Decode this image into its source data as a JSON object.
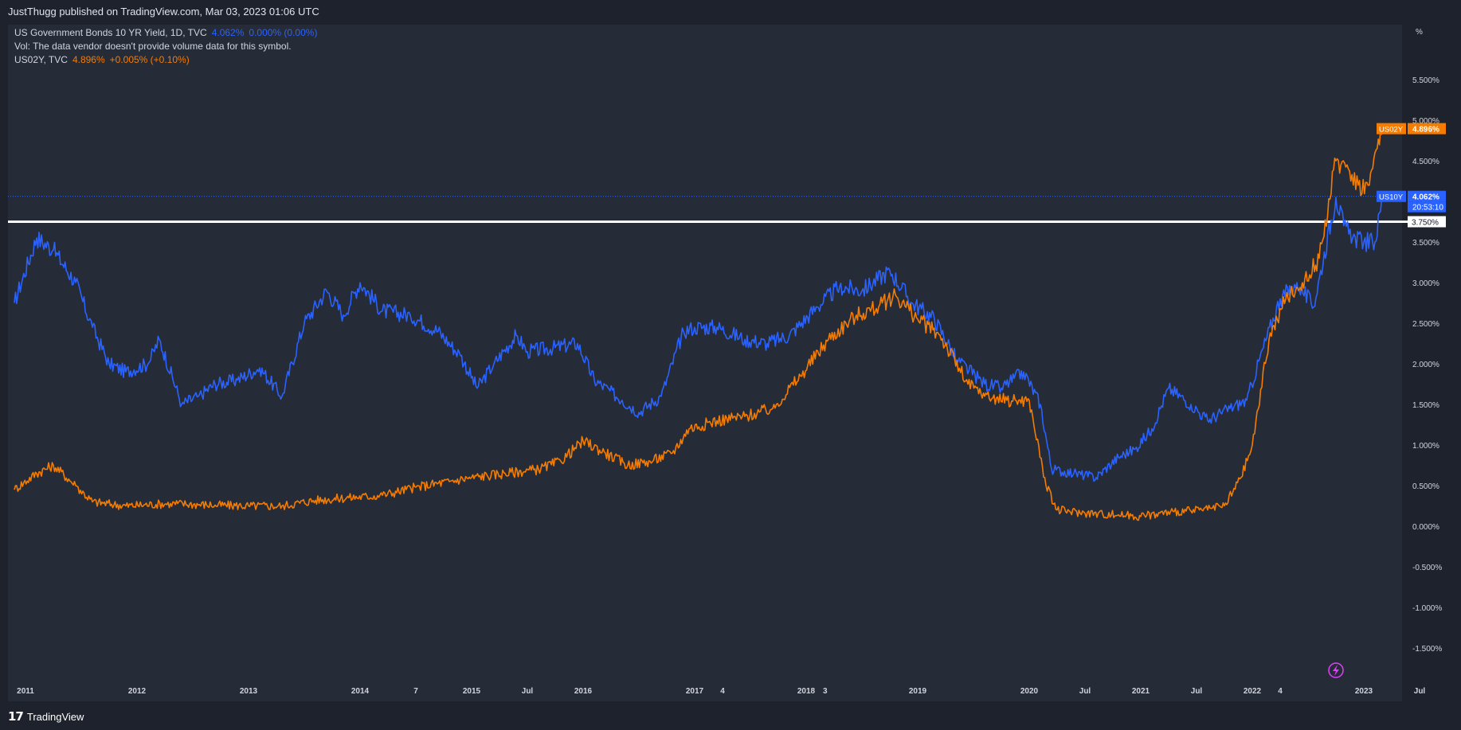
{
  "header": {
    "published_line": "JustThugg published on TradingView.com, Mar 03, 2023 01:06 UTC"
  },
  "legend": {
    "us10y": {
      "name": "US Government Bonds 10 YR Yield, 1D, TVC",
      "value": "4.062%",
      "change": "0.000% (0.00%)"
    },
    "vol": "Vol: The data vendor doesn't provide volume data for this symbol.",
    "us02y": {
      "name": "US02Y, TVC",
      "value": "4.896%",
      "change": "+0.005% (+0.10%)"
    }
  },
  "price_labels": {
    "us02y": {
      "tag": "US02Y",
      "value": "4.896%"
    },
    "us10y": {
      "tag": "US10Y",
      "value": "4.062%",
      "countdown": "20:53:10"
    },
    "hline": "3.750%"
  },
  "footer": {
    "logo_text": "TradingView"
  },
  "colors": {
    "background": "#1e222d",
    "pane": "#262b38",
    "us10y": "#2962ff",
    "us02y": "#f57c00",
    "hline": "#ffffff",
    "axis_text": "#d1d4dc"
  },
  "icons": {
    "replay": "lightning-icon"
  },
  "chart_data": {
    "type": "line",
    "y_unit": "%",
    "ylim": [
      -1.85,
      5.9
    ],
    "grid": false,
    "y_ticks": [
      "5.500%",
      "5.000%",
      "4.500%",
      "4.000%",
      "3.500%",
      "3.000%",
      "2.500%",
      "2.000%",
      "1.500%",
      "1.000%",
      "0.500%",
      "0.000%",
      "-0.500%",
      "-1.000%",
      "-1.500%"
    ],
    "x_ticks": [
      {
        "label": "2011",
        "t": 2011.0
      },
      {
        "label": "2012",
        "t": 2012.0
      },
      {
        "label": "2013",
        "t": 2013.0
      },
      {
        "label": "2014",
        "t": 2014.0
      },
      {
        "label": "7",
        "t": 2014.5
      },
      {
        "label": "2015",
        "t": 2015.0
      },
      {
        "label": "Jul",
        "t": 2015.5
      },
      {
        "label": "2016",
        "t": 2016.0
      },
      {
        "label": "2017",
        "t": 2017.0
      },
      {
        "label": "4",
        "t": 2017.25
      },
      {
        "label": "2018",
        "t": 2018.0
      },
      {
        "label": "3",
        "t": 2018.17
      },
      {
        "label": "2019",
        "t": 2019.0
      },
      {
        "label": "2020",
        "t": 2020.0
      },
      {
        "label": "Jul",
        "t": 2020.5
      },
      {
        "label": "2021",
        "t": 2021.0
      },
      {
        "label": "Jul",
        "t": 2021.5
      },
      {
        "label": "2022",
        "t": 2022.0
      },
      {
        "label": "4",
        "t": 2022.25
      },
      {
        "label": "2023",
        "t": 2023.0
      },
      {
        "label": "Jul",
        "t": 2023.5
      }
    ],
    "horizontal_line": 3.75,
    "series": [
      {
        "name": "US10Y",
        "color": "#2962ff",
        "x": [
          2010.9,
          2011.1,
          2011.25,
          2011.45,
          2011.6,
          2011.75,
          2011.9,
          2012.1,
          2012.2,
          2012.4,
          2012.55,
          2012.7,
          2012.9,
          2013.1,
          2013.3,
          2013.5,
          2013.7,
          2013.85,
          2014.0,
          2014.2,
          2014.45,
          2014.7,
          2014.9,
          2015.05,
          2015.2,
          2015.4,
          2015.5,
          2015.75,
          2015.95,
          2016.1,
          2016.35,
          2016.5,
          2016.7,
          2016.9,
          2017.0,
          2017.2,
          2017.45,
          2017.65,
          2017.85,
          2018.1,
          2018.3,
          2018.5,
          2018.75,
          2018.95,
          2019.15,
          2019.35,
          2019.6,
          2019.75,
          2019.95,
          2020.1,
          2020.2,
          2020.4,
          2020.6,
          2020.8,
          2020.95,
          2021.1,
          2021.25,
          2021.45,
          2021.6,
          2021.8,
          2021.95,
          2022.1,
          2022.25,
          2022.4,
          2022.55,
          2022.75,
          2022.82,
          2022.9,
          2023.0,
          2023.1,
          2023.17
        ],
        "y": [
          2.75,
          3.55,
          3.4,
          3.0,
          2.45,
          2.0,
          1.9,
          2.0,
          2.3,
          1.5,
          1.6,
          1.75,
          1.8,
          1.95,
          1.6,
          2.5,
          2.9,
          2.6,
          3.0,
          2.65,
          2.6,
          2.4,
          2.1,
          1.7,
          2.0,
          2.35,
          2.15,
          2.2,
          2.25,
          1.8,
          1.55,
          1.4,
          1.6,
          2.4,
          2.45,
          2.45,
          2.3,
          2.25,
          2.35,
          2.7,
          2.95,
          2.9,
          3.15,
          2.75,
          2.55,
          2.05,
          1.75,
          1.7,
          1.9,
          1.5,
          0.7,
          0.65,
          0.6,
          0.85,
          0.95,
          1.2,
          1.7,
          1.5,
          1.3,
          1.45,
          1.55,
          2.2,
          2.8,
          3.0,
          2.7,
          4.05,
          3.7,
          3.55,
          3.5,
          3.5,
          4.062
        ]
      },
      {
        "name": "US02Y",
        "color": "#f57c00",
        "x": [
          2010.9,
          2011.1,
          2011.25,
          2011.45,
          2011.6,
          2011.9,
          2012.3,
          2012.7,
          2013.0,
          2013.3,
          2013.6,
          2013.9,
          2014.2,
          2014.5,
          2014.8,
          2015.0,
          2015.3,
          2015.6,
          2015.8,
          2016.0,
          2016.2,
          2016.4,
          2016.6,
          2016.8,
          2016.95,
          2017.2,
          2017.45,
          2017.7,
          2017.95,
          2018.2,
          2018.45,
          2018.65,
          2018.8,
          2019.0,
          2019.2,
          2019.45,
          2019.6,
          2019.8,
          2020.0,
          2020.15,
          2020.25,
          2020.5,
          2020.8,
          2021.0,
          2021.3,
          2021.6,
          2021.75,
          2021.9,
          2022.0,
          2022.15,
          2022.3,
          2022.45,
          2022.6,
          2022.75,
          2022.85,
          2022.95,
          2023.05,
          2023.1,
          2023.17
        ],
        "y": [
          0.45,
          0.65,
          0.75,
          0.5,
          0.3,
          0.25,
          0.28,
          0.26,
          0.25,
          0.25,
          0.32,
          0.35,
          0.38,
          0.48,
          0.55,
          0.6,
          0.65,
          0.7,
          0.8,
          1.05,
          0.9,
          0.75,
          0.8,
          0.9,
          1.2,
          1.3,
          1.35,
          1.45,
          1.85,
          2.3,
          2.6,
          2.7,
          2.85,
          2.55,
          2.35,
          1.75,
          1.6,
          1.55,
          1.55,
          0.5,
          0.2,
          0.16,
          0.14,
          0.12,
          0.18,
          0.2,
          0.25,
          0.6,
          1.0,
          2.3,
          2.8,
          3.0,
          3.3,
          4.5,
          4.45,
          4.2,
          4.2,
          4.6,
          4.896
        ]
      }
    ]
  }
}
